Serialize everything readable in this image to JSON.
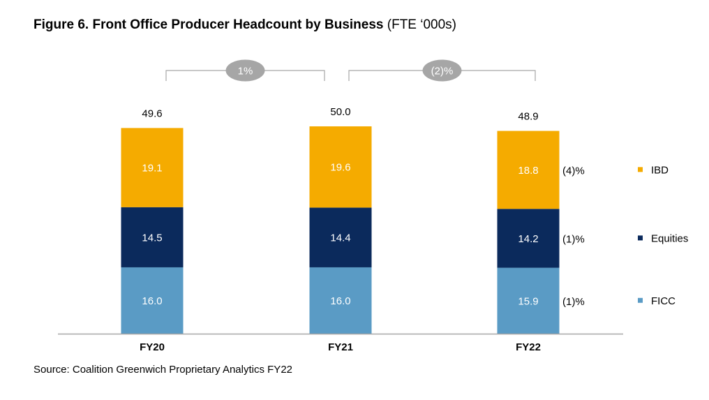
{
  "title": {
    "bold": "Figure 6. Front Office Producer Headcount by Business",
    "unit": "(FTE ‘000s)"
  },
  "source": "Source: Coalition Greenwich Proprietary Analytics FY22",
  "colors": {
    "IBD": "#F5AB00",
    "Equities": "#0B2A5C",
    "FICC": "#5A9BC5",
    "bracket": "#A6A6A6",
    "bubble": "#A6A6A6",
    "axis": "#A6A6A6"
  },
  "chart_data": {
    "type": "bar",
    "stacked": true,
    "categories": [
      "FY20",
      "FY21",
      "FY22"
    ],
    "series": [
      {
        "name": "FICC",
        "values": [
          16.0,
          16.0,
          15.9
        ],
        "value_labels": [
          "16.0",
          "16.0",
          "15.9"
        ],
        "change_label": "(1)%"
      },
      {
        "name": "Equities",
        "values": [
          14.5,
          14.4,
          14.2
        ],
        "value_labels": [
          "14.5",
          "14.4",
          "14.2"
        ],
        "change_label": "(1)%"
      },
      {
        "name": "IBD",
        "values": [
          19.1,
          19.6,
          18.8
        ],
        "value_labels": [
          "19.1",
          "19.6",
          "18.8"
        ],
        "change_label": "(4)%"
      }
    ],
    "totals": [
      49.6,
      50.0,
      48.9
    ],
    "total_labels": [
      "49.6",
      "50.0",
      "48.9"
    ],
    "period_changes": [
      {
        "from": "FY20",
        "to": "FY21",
        "label": "1%"
      },
      {
        "from": "FY21",
        "to": "FY22",
        "label": "(2)%"
      }
    ],
    "legend": [
      "IBD",
      "Equities",
      "FICC"
    ],
    "legend_position": "right",
    "ylim": [
      0,
      50.0
    ],
    "grid": false
  }
}
